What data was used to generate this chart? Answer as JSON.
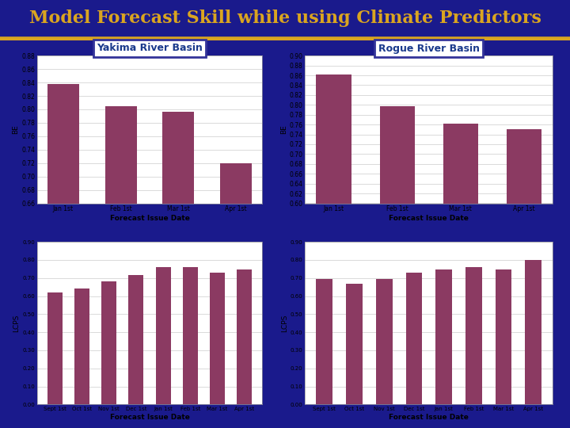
{
  "title": "Model Forecast Skill while using Climate Predictors",
  "title_bg": "#1a1a8c",
  "title_color": "#DAA520",
  "title_fontsize": 16,
  "body_bg": "#1a1a8c",
  "subtitle_left": "Yakima River Basin",
  "subtitle_right": "Rogue River Basin",
  "subtitle_color": "#1a3a8c",
  "subtitle_fontsize": 9,
  "bar_color": "#8B3A62",
  "yakima_be_categories": [
    "Jan 1st",
    "Feb 1st",
    "Mar 1st",
    "Apr 1st"
  ],
  "yakima_be_values": [
    0.838,
    0.805,
    0.796,
    0.72
  ],
  "yakima_be_ylim": [
    0.66,
    0.88
  ],
  "yakima_be_yticks": [
    0.66,
    0.68,
    0.7,
    0.72,
    0.74,
    0.76,
    0.78,
    0.8,
    0.82,
    0.84,
    0.86,
    0.88
  ],
  "yakima_be_ylabel": "BE",
  "rogue_be_categories": [
    "Jan 1st",
    "Feb 1st",
    "Mar 1st",
    "Apr 1st"
  ],
  "rogue_be_values": [
    0.862,
    0.797,
    0.762,
    0.75
  ],
  "rogue_be_ylim": [
    0.6,
    0.9
  ],
  "rogue_be_yticks": [
    0.6,
    0.62,
    0.64,
    0.66,
    0.68,
    0.7,
    0.72,
    0.74,
    0.76,
    0.78,
    0.8,
    0.82,
    0.84,
    0.86,
    0.88,
    0.9
  ],
  "rogue_be_ylabel": "BE",
  "yakima_lcps_categories": [
    "Sept 1st",
    "Oct 1st",
    "Nov 1st",
    "Dec 1st",
    "Jan 1st",
    "Feb 1st",
    "Mar 1st",
    "Apr 1st"
  ],
  "yakima_lcps_values": [
    0.62,
    0.64,
    0.68,
    0.715,
    0.758,
    0.758,
    0.73,
    0.748
  ],
  "yakima_lcps_ylim": [
    0.0,
    0.9
  ],
  "yakima_lcps_yticks": [
    0.0,
    0.1,
    0.2,
    0.3,
    0.4,
    0.5,
    0.6,
    0.7,
    0.8,
    0.9
  ],
  "yakima_lcps_ylabel": "LCPS",
  "rogue_lcps_categories": [
    "Sept 1st",
    "Oct 1st",
    "Nov 1st",
    "Dec 1st",
    "Jan 1st",
    "Feb 1st",
    "Mar 1st",
    "Apr 1st"
  ],
  "rogue_lcps_values": [
    0.695,
    0.67,
    0.695,
    0.73,
    0.745,
    0.76,
    0.745,
    0.8
  ],
  "rogue_lcps_ylim": [
    0.0,
    0.9
  ],
  "rogue_lcps_yticks": [
    0.0,
    0.1,
    0.2,
    0.3,
    0.4,
    0.5,
    0.6,
    0.7,
    0.8,
    0.9
  ],
  "rogue_lcps_ylabel": "LCPS",
  "xlabel": "Forecast Issue Date",
  "grid_color": "#cccccc",
  "plot_bg": "white",
  "border_color": "#aaaaaa",
  "gold_line": "#DAA520",
  "subtitle_border": "#333399"
}
